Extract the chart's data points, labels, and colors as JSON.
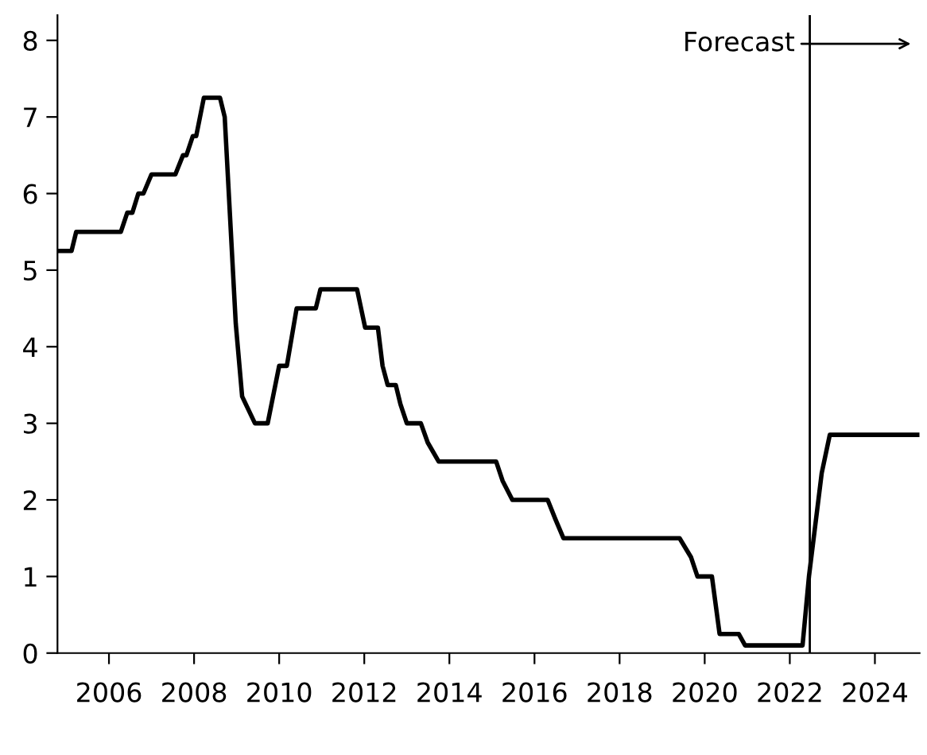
{
  "chart_data": {
    "type": "line",
    "x": [
      2004.85,
      2005.12,
      2005.23,
      2006.28,
      2006.43,
      2006.55,
      2006.69,
      2006.81,
      2007.0,
      2007.56,
      2007.74,
      2007.82,
      2007.97,
      2008.05,
      2008.23,
      2008.61,
      2008.72,
      2008.98,
      2009.13,
      2009.43,
      2009.73,
      2010.0,
      2010.18,
      2010.41,
      2010.86,
      2010.97,
      2011.83,
      2012.02,
      2012.32,
      2012.43,
      2012.55,
      2012.74,
      2012.85,
      2013.0,
      2013.33,
      2013.49,
      2013.75,
      2015.1,
      2015.25,
      2015.48,
      2016.31,
      2016.49,
      2016.68,
      2019.41,
      2019.68,
      2019.83,
      2020.17,
      2020.35,
      2020.8,
      2020.95,
      2022.3,
      2022.45,
      2022.75,
      2022.94,
      2025.0
    ],
    "series": [
      {
        "color": "#000000",
        "values": [
          5.25,
          5.25,
          5.5,
          5.5,
          5.75,
          5.75,
          6.0,
          6.0,
          6.25,
          6.25,
          6.5,
          6.5,
          6.75,
          6.75,
          7.25,
          7.25,
          7.0,
          4.3,
          3.35,
          3.0,
          3.0,
          3.75,
          3.75,
          4.5,
          4.5,
          4.75,
          4.75,
          4.25,
          4.25,
          3.75,
          3.5,
          3.5,
          3.25,
          3.0,
          3.0,
          2.75,
          2.5,
          2.5,
          2.25,
          2.0,
          2.0,
          1.75,
          1.5,
          1.5,
          1.25,
          1.0,
          1.0,
          0.25,
          0.25,
          0.1,
          0.1,
          1.0,
          2.35,
          2.85,
          2.85
        ]
      }
    ],
    "xlim": [
      2004.79,
      2025.05
    ],
    "xticks": [
      2006,
      2008,
      2010,
      2012,
      2014,
      2016,
      2018,
      2020,
      2022,
      2024
    ],
    "ylim": [
      0,
      8.33
    ],
    "yticks": [
      0,
      1,
      2,
      3,
      4,
      5,
      6,
      7,
      8
    ],
    "grid": false,
    "legend": false,
    "marker": "none",
    "line_style": "solid",
    "ref_lines": [
      {
        "axis": "x",
        "value": 2022.47,
        "label": "Forecast",
        "color": "#000000",
        "line_style": "solid"
      }
    ]
  }
}
